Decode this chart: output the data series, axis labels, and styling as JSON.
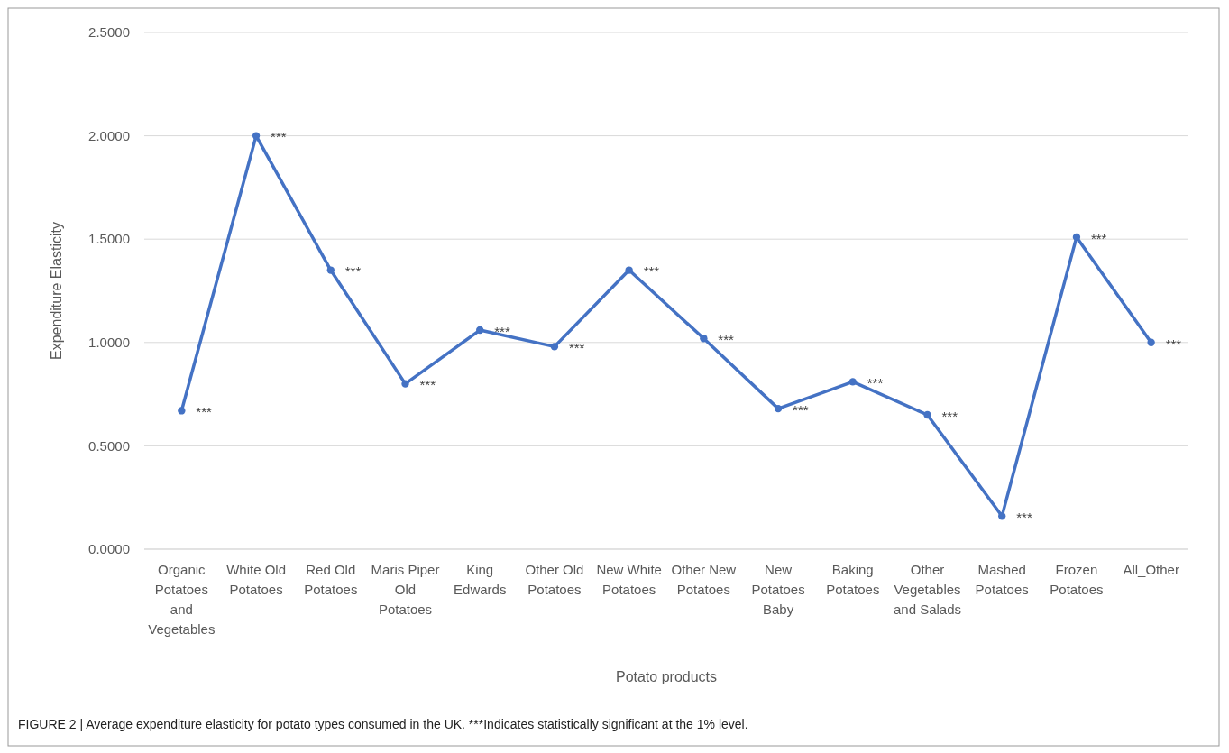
{
  "chart_data": {
    "type": "line",
    "xlabel": "Potato products",
    "ylabel": "Expenditure Elasticity",
    "categories": [
      "Organic Potatoes and Vegetables",
      "White Old Potatoes",
      "Red Old Potatoes",
      "Maris Piper Old Potatoes",
      "King Edwards",
      "Other Old Potatoes",
      "New White Potatoes",
      "Other New Potatoes",
      "New Potatoes Baby",
      "Baking Potatoes",
      "Other Vegetables and Salads",
      "Mashed Potatoes",
      "Frozen Potatoes",
      "All_Other"
    ],
    "series": [
      {
        "color": "#4472c4",
        "values": [
          0.67,
          2.0,
          1.35,
          0.8,
          1.06,
          0.98,
          1.35,
          1.02,
          0.68,
          0.81,
          0.65,
          0.16,
          1.51,
          1.0
        ]
      }
    ],
    "ylim": [
      0,
      2.5
    ],
    "yticks": [
      {
        "value": 0,
        "label": "0.0000"
      },
      {
        "value": 0.5,
        "label": "0.5000"
      },
      {
        "value": 1,
        "label": "1.0000"
      },
      {
        "value": 1.5,
        "label": "1.5000"
      },
      {
        "value": 2,
        "label": "2.0000"
      },
      {
        "value": 2.5,
        "label": "2.5000"
      }
    ],
    "grid": "y",
    "marker": "circle",
    "line_style": "solid",
    "annotations": [
      {
        "text": "***",
        "x": "Organic Potatoes and Vegetables",
        "y": 0.67
      },
      {
        "text": "***",
        "x": "White Old Potatoes",
        "y": 2.0
      },
      {
        "text": "***",
        "x": "Red Old Potatoes",
        "y": 1.35
      },
      {
        "text": "***",
        "x": "Maris Piper Old Potatoes",
        "y": 0.8
      },
      {
        "text": "***",
        "x": "King Edwards",
        "y": 1.06
      },
      {
        "text": "***",
        "x": "Other Old Potatoes",
        "y": 0.98
      },
      {
        "text": "***",
        "x": "New White Potatoes",
        "y": 1.35
      },
      {
        "text": "***",
        "x": "Other New Potatoes",
        "y": 1.02
      },
      {
        "text": "***",
        "x": "New Potatoes Baby",
        "y": 0.68
      },
      {
        "text": "***",
        "x": "Baking Potatoes",
        "y": 0.81
      },
      {
        "text": "***",
        "x": "Other Vegetables and Salads",
        "y": 0.65
      },
      {
        "text": "***",
        "x": "Mashed Potatoes",
        "y": 0.16
      },
      {
        "text": "***",
        "x": "Frozen Potatoes",
        "y": 1.51
      },
      {
        "text": "***",
        "x": "All_Other",
        "y": 1.0
      },
      "FIGURE 2 | Average expenditure elasticity for potato types consumed in the UK. ***Indicates statistically significant at the 1% level."
    ]
  }
}
